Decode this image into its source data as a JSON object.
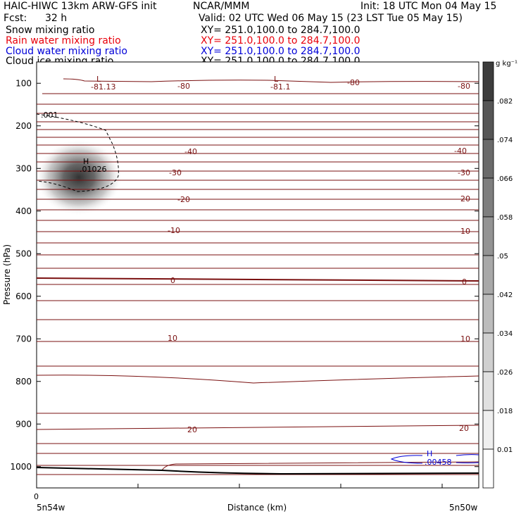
{
  "header": {
    "model": "HAIC-HIWC 13km ARW-GFS init",
    "org": "NCAR/MMM",
    "init": "Init: 18 UTC Mon 04 May 15",
    "fcst_label": "Fcst:",
    "fcst_value": "32 h",
    "valid": "Valid: 02 UTC Wed 06 May 15 (23 LST Tue 05 May 15)"
  },
  "fields": [
    {
      "name": "Snow mixing ratio",
      "xy": "XY= 251.0,100.0 to 284.7,100.0",
      "color": "#000000"
    },
    {
      "name": "Rain water mixing ratio",
      "xy": "XY= 251.0,100.0 to 284.7,100.0",
      "color": "#e8000b"
    },
    {
      "name": "Cloud water mixing ratio",
      "xy": "XY= 251.0,100.0 to 284.7,100.0",
      "color": "#0000d8"
    },
    {
      "name": "Cloud ice mixing ratio",
      "xy": "XY= 251.0,100.0 to 284.7,100.0",
      "color": "#000000"
    }
  ],
  "chart_data": {
    "type": "heatmap",
    "xlabel": "Distance (km)",
    "ylabel": "Pressure (hPa)",
    "x_tick_start": "0",
    "x_left_label": "5n54w",
    "x_right_label": "5n50w",
    "ylim": [
      1050,
      50
    ],
    "y_ticks": [
      100,
      200,
      300,
      400,
      500,
      600,
      700,
      800,
      900,
      1000
    ],
    "colorbar": {
      "unit": "g kg⁻¹",
      "levels": [
        "0.01",
        ".018",
        ".026",
        ".034",
        ".042",
        ".05",
        ".058",
        ".066",
        ".074",
        ".082"
      ]
    },
    "temperature_labels": [
      {
        "value": "-80",
        "pressure": 122
      },
      {
        "value": "-40",
        "pressure": 262
      },
      {
        "value": "-30",
        "pressure": 305
      },
      {
        "value": "-20",
        "pressure": 360
      },
      {
        "value": "-10",
        "pressure": 430
      },
      {
        "value": "0",
        "pressure": 555
      },
      {
        "value": "10",
        "pressure": 690
      },
      {
        "value": "20",
        "pressure": 910
      }
    ],
    "extrema": [
      {
        "type": "L",
        "value": "-81.13",
        "color": "#7a1010"
      },
      {
        "type": "L",
        "value": "-81.1",
        "color": "#7a1010"
      },
      {
        "type": "H",
        "value": ".01026",
        "color": "#000000"
      },
      {
        "type": "H",
        "value": ".00458",
        "color": "#0000d8"
      }
    ],
    "contour_label": ".001"
  }
}
